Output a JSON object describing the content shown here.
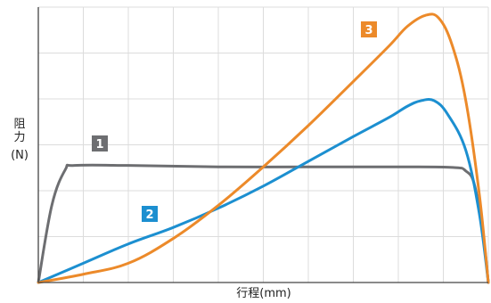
{
  "chart_data": {
    "type": "line",
    "title": "",
    "xlabel": "行程(mm)",
    "ylabel": "阻力",
    "ylabel_unit": "(N)",
    "xlim": [
      0,
      100
    ],
    "ylim": [
      0,
      100
    ],
    "grid": true,
    "x_grid_count": 10,
    "y_grid_count": 6,
    "x_ticks_labeled": false,
    "y_ticks_labeled": false,
    "series": [
      {
        "marker": "1",
        "color": "#6d6e71",
        "points": [
          [
            0,
            0
          ],
          [
            3,
            28
          ],
          [
            6,
            41
          ],
          [
            8,
            42.5
          ],
          [
            20,
            42.5
          ],
          [
            40,
            42
          ],
          [
            60,
            42
          ],
          [
            80,
            42
          ],
          [
            92,
            41.8
          ],
          [
            95,
            40.5
          ],
          [
            97,
            35
          ],
          [
            99,
            15
          ],
          [
            100,
            0
          ]
        ]
      },
      {
        "marker": "2",
        "color": "#1c8fd0",
        "points": [
          [
            0,
            0
          ],
          [
            10,
            7
          ],
          [
            20,
            14
          ],
          [
            30,
            20
          ],
          [
            40,
            27
          ],
          [
            50,
            35
          ],
          [
            60,
            44
          ],
          [
            70,
            53
          ],
          [
            78,
            60
          ],
          [
            82,
            64
          ],
          [
            85,
            66
          ],
          [
            88,
            66
          ],
          [
            91,
            61
          ],
          [
            95,
            48
          ],
          [
            98,
            25
          ],
          [
            100,
            0
          ]
        ]
      },
      {
        "marker": "3",
        "color": "#ec8a2a",
        "points": [
          [
            0,
            0
          ],
          [
            10,
            3
          ],
          [
            20,
            7
          ],
          [
            30,
            16
          ],
          [
            40,
            28
          ],
          [
            50,
            42
          ],
          [
            60,
            57
          ],
          [
            70,
            73
          ],
          [
            78,
            86
          ],
          [
            82,
            93
          ],
          [
            86,
            97
          ],
          [
            89,
            96
          ],
          [
            92,
            86
          ],
          [
            95,
            66
          ],
          [
            98,
            32
          ],
          [
            100,
            0
          ]
        ]
      }
    ]
  }
}
